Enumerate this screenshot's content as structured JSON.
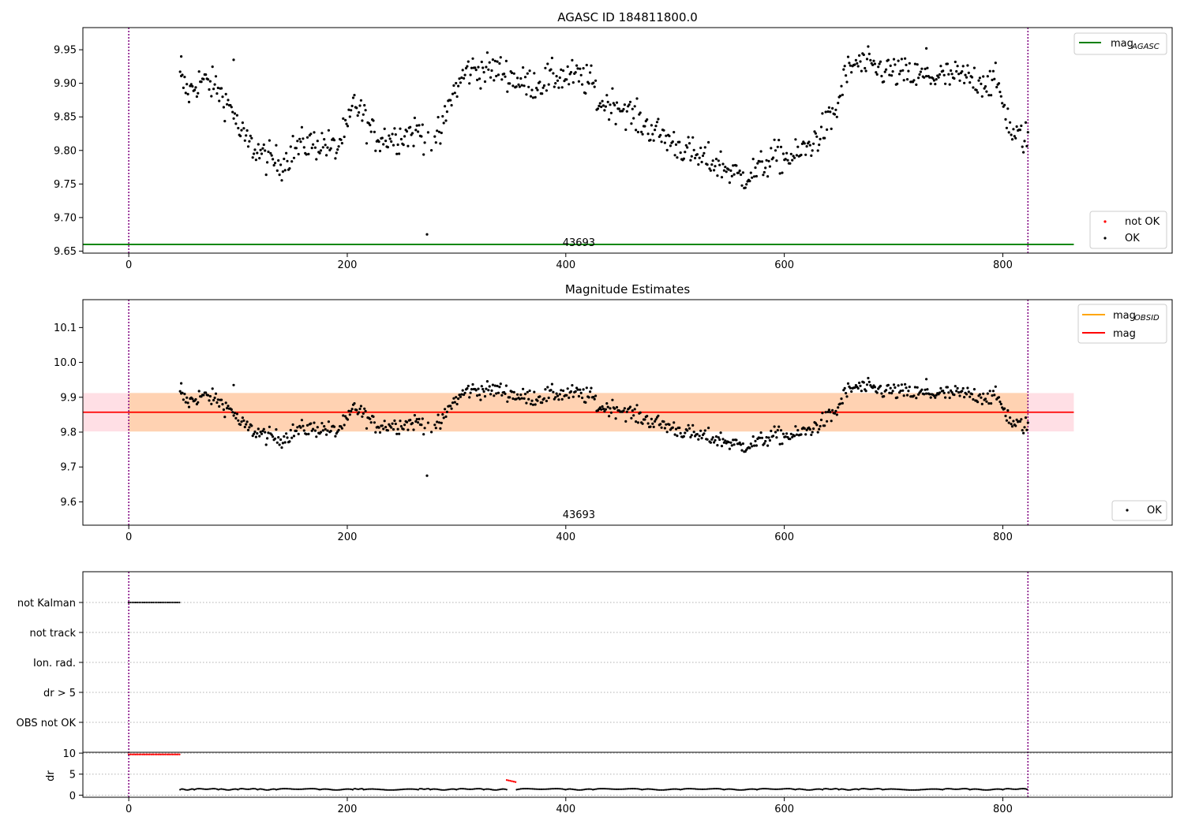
{
  "chart_data": [
    {
      "type": "scatter",
      "title": "AGASC ID 184811800.0",
      "xlabel": "",
      "ylabel": "",
      "xlim": [
        -42,
        955
      ],
      "ylim": [
        9.647,
        9.983
      ],
      "xticks": [
        0,
        200,
        400,
        600,
        800
      ],
      "yticks": [
        9.65,
        9.7,
        9.75,
        9.8,
        9.85,
        9.9,
        9.95
      ],
      "legend_upper": "top-right",
      "legend_lower": "bottom-right",
      "legend_labels": {
        "mag_agasc": "mag",
        "mag_agasc_sub": "AGASC",
        "not_ok": "not OK",
        "ok": "OK"
      },
      "lines": [
        {
          "name": "mag_AGASC",
          "y": 9.66,
          "x_range": [
            -42,
            865
          ],
          "color": "#008000"
        }
      ],
      "vlines": [
        0,
        823
      ],
      "obsid_label": "43693",
      "obsid_label_x": 412,
      "trend_knots": [
        [
          47,
          9.905
        ],
        [
          55,
          9.885
        ],
        [
          65,
          9.905
        ],
        [
          80,
          9.895
        ],
        [
          90,
          9.87
        ],
        [
          96,
          9.86
        ],
        [
          100,
          9.83
        ],
        [
          110,
          9.81
        ],
        [
          125,
          9.79
        ],
        [
          140,
          9.78
        ],
        [
          150,
          9.8
        ],
        [
          160,
          9.81
        ],
        [
          180,
          9.81
        ],
        [
          190,
          9.8
        ],
        [
          195,
          9.82
        ],
        [
          200,
          9.83
        ],
        [
          206,
          9.87
        ],
        [
          212,
          9.86
        ],
        [
          218,
          9.84
        ],
        [
          225,
          9.82
        ],
        [
          245,
          9.82
        ],
        [
          265,
          9.83
        ],
        [
          275,
          9.82
        ],
        [
          285,
          9.82
        ],
        [
          290,
          9.85
        ],
        [
          295,
          9.88
        ],
        [
          310,
          9.92
        ],
        [
          340,
          9.92
        ],
        [
          360,
          9.9
        ],
        [
          375,
          9.9
        ],
        [
          390,
          9.91
        ],
        [
          410,
          9.91
        ],
        [
          425,
          9.9
        ],
        [
          430,
          9.87
        ],
        [
          445,
          9.87
        ],
        [
          455,
          9.86
        ],
        [
          470,
          9.84
        ],
        [
          480,
          9.83
        ],
        [
          500,
          9.81
        ],
        [
          520,
          9.79
        ],
        [
          540,
          9.78
        ],
        [
          560,
          9.76
        ],
        [
          575,
          9.77
        ],
        [
          590,
          9.79
        ],
        [
          610,
          9.79
        ],
        [
          625,
          9.81
        ],
        [
          640,
          9.84
        ],
        [
          648,
          9.86
        ],
        [
          655,
          9.91
        ],
        [
          665,
          9.93
        ],
        [
          690,
          9.92
        ],
        [
          720,
          9.91
        ],
        [
          760,
          9.91
        ],
        [
          795,
          9.9
        ],
        [
          802,
          9.86
        ],
        [
          810,
          9.82
        ],
        [
          823,
          9.82
        ]
      ],
      "gap": [
        270,
        280
      ],
      "outliers": [
        [
          273,
          9.675
        ],
        [
          96,
          9.935
        ],
        [
          48,
          9.94
        ],
        [
          730,
          9.952
        ]
      ],
      "x_points_range": [
        47,
        823
      ],
      "n_points": 760,
      "noise": 0.012
    },
    {
      "type": "scatter",
      "title": "Magnitude Estimates",
      "xlabel": "",
      "ylabel": "",
      "xlim": [
        -42,
        955
      ],
      "ylim": [
        9.533,
        10.18
      ],
      "xticks": [
        0,
        200,
        400,
        600,
        800
      ],
      "yticks": [
        9.6,
        9.7,
        9.8,
        9.9,
        10.0,
        10.1
      ],
      "legend_upper": "top-right",
      "legend_lower": "bottom-right",
      "legend_labels": {
        "mag_obsid": "mag",
        "mag_obsid_sub": "OBSID",
        "mag": "mag",
        "ok": "OK"
      },
      "mag_obsid": {
        "y": 9.857,
        "band": [
          9.802,
          9.912
        ],
        "x_range": [
          -42,
          865
        ],
        "color": "#ffa500"
      },
      "mag": {
        "y": 9.857,
        "band": [
          9.802,
          9.912
        ],
        "x_range": [
          -42,
          865
        ],
        "color": "#ff0000"
      },
      "vlines": [
        0,
        823
      ],
      "obsid_label": "43693",
      "obsid_label_x": 412
    },
    {
      "type": "scatter",
      "title": "",
      "flags_panel": {
        "categories": [
          "not Kalman",
          "not track",
          "Ion. rad.",
          "dr > 5",
          "OBS not OK"
        ],
        "segments": {
          "not Kalman": [
            [
              0,
              47
            ]
          ],
          "not track": [],
          "Ion. rad.": [],
          "dr > 5": [],
          "OBS not OK": []
        }
      },
      "dr_panel": {
        "ylabel": "dr",
        "ylim": [
          -0.5,
          10.2
        ],
        "yticks": [
          0,
          5,
          10
        ],
        "red_segments": [
          [
            0,
            47,
            9.7
          ],
          [
            346,
            355,
            3.6
          ]
        ],
        "scallops": [
          [
            47,
            60
          ],
          [
            60,
            82
          ],
          [
            82,
            100
          ],
          [
            100,
            118
          ],
          [
            118,
            135
          ],
          [
            135,
            175
          ],
          [
            175,
            205
          ],
          [
            205,
            215
          ],
          [
            215,
            265
          ],
          [
            265,
            276
          ],
          [
            276,
            300
          ],
          [
            300,
            325
          ],
          [
            325,
            346
          ],
          [
            355,
            400
          ],
          [
            400,
            425
          ],
          [
            425,
            470
          ],
          [
            470,
            505
          ],
          [
            505,
            545
          ],
          [
            545,
            575
          ],
          [
            575,
            610
          ],
          [
            610,
            635
          ],
          [
            635,
            650
          ],
          [
            650,
            668
          ],
          [
            668,
            690
          ],
          [
            690,
            745
          ],
          [
            745,
            770
          ],
          [
            770,
            800
          ],
          [
            800,
            823
          ]
        ],
        "scallop_base": 1.5,
        "scallop_amp": 0.9
      },
      "xlim": [
        -42,
        955
      ],
      "xticks": [
        0,
        200,
        400,
        600,
        800
      ],
      "vlines": [
        0,
        823
      ]
    }
  ],
  "colors": {
    "ok": "#000000",
    "not_ok": "#ff0000",
    "vline": "#800080",
    "grid": "#b0b0b0",
    "band_pink": "#ffc0cb",
    "band_orange": "#ffa500"
  }
}
